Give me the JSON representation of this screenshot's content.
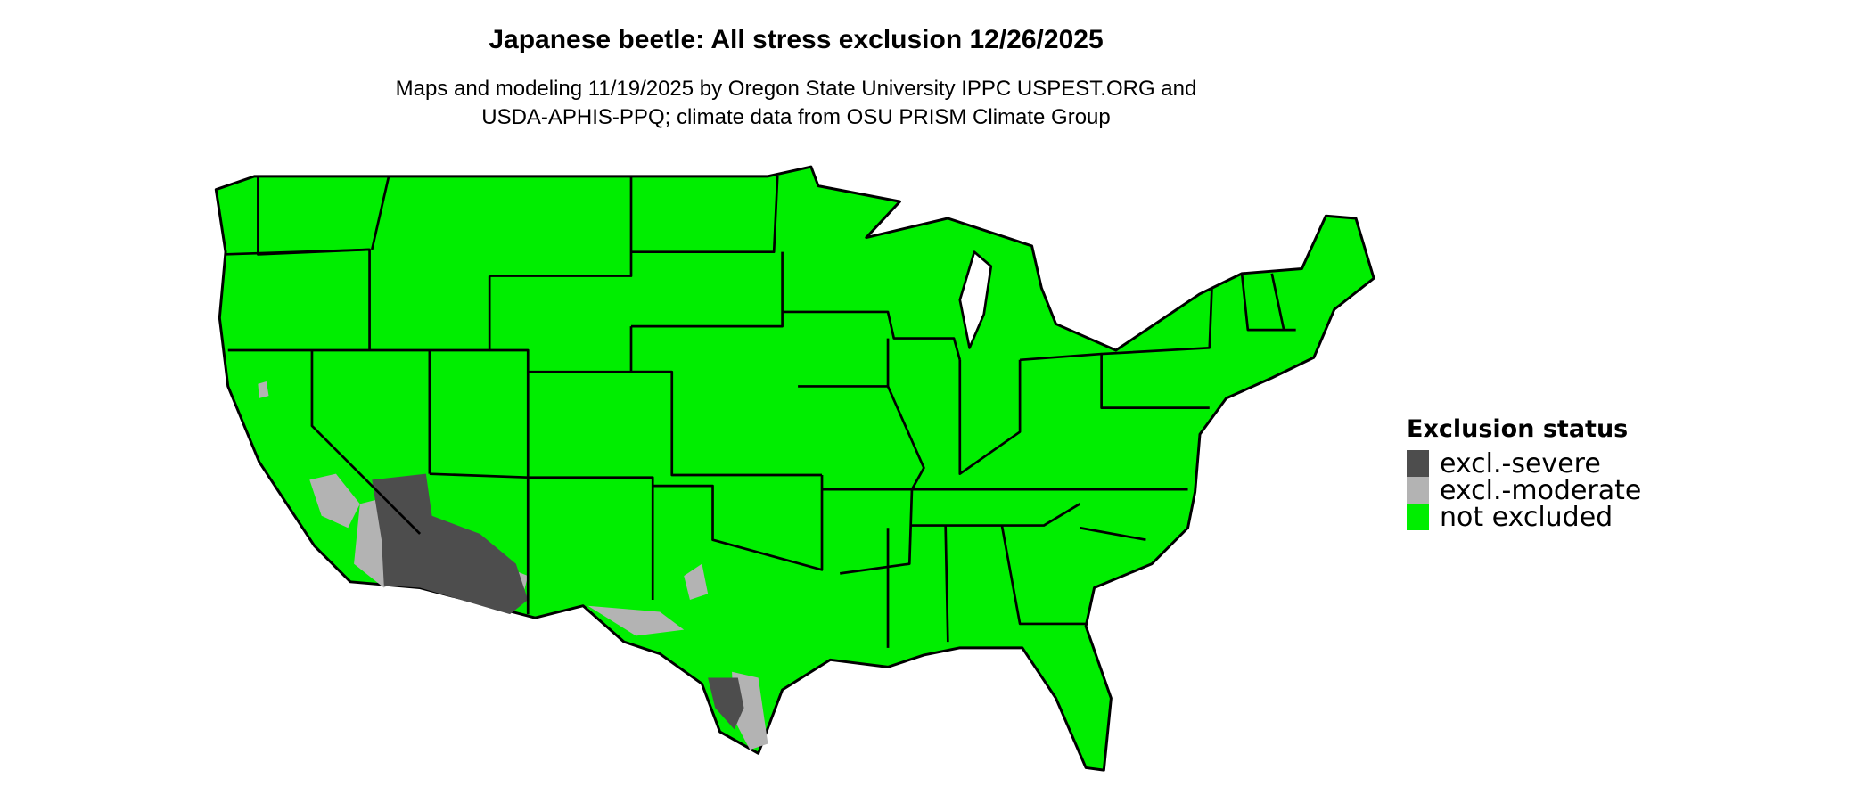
{
  "title": "Japanese beetle: All stress exclusion 12/26/2025",
  "subtitle_line1": "Maps and modeling 11/19/2025 by Oregon State University IPPC USPEST.ORG and",
  "subtitle_line2": "USDA-APHIS-PPQ; climate data from OSU PRISM Climate Group",
  "legend": {
    "title": "Exclusion status",
    "items": [
      {
        "label": "excl.-severe",
        "color": "#4d4d4d"
      },
      {
        "label": "excl.-moderate",
        "color": "#b3b3b3"
      },
      {
        "label": "not excluded",
        "color": "#00ee00"
      }
    ]
  }
}
